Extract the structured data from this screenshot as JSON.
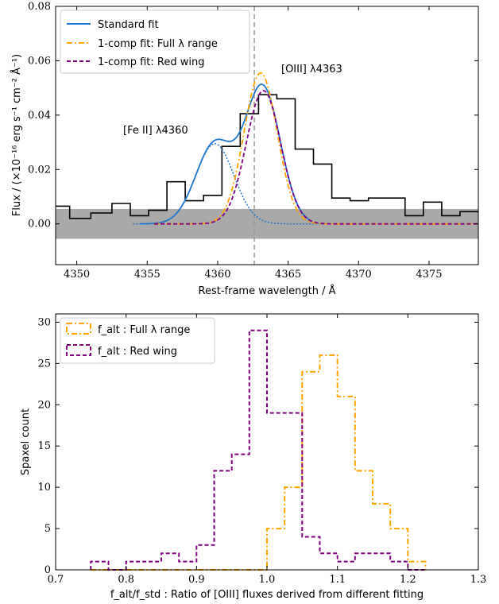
{
  "chart_data": [
    {
      "type": "line",
      "xlabel": "Rest-frame wavelength / Å",
      "ylabel": "Flux / (×10⁻¹⁶ erg s⁻¹ cm⁻² Å⁻¹)",
      "xlim": [
        4348.5,
        4378.5
      ],
      "ylim": [
        -0.015,
        0.08
      ],
      "xticks": [
        4350,
        4355,
        4360,
        4365,
        4370,
        4375
      ],
      "yticks": [
        0.0,
        0.02,
        0.04,
        0.06,
        0.08
      ],
      "ytick_labels": [
        "0.00",
        "0.02",
        "0.04",
        "0.06",
        "0.08"
      ],
      "legend_position": "top-left",
      "annotations": [
        {
          "text": "[Fe II] λ4360",
          "x": 4360.0,
          "y": 0.033
        },
        {
          "text": "[OIII] λ4363",
          "x": 4365.6,
          "y": 0.057
        }
      ],
      "vline_x": 4362.6,
      "error_band": {
        "lower": -0.0055,
        "upper": 0.0055
      },
      "observed_spectrum": {
        "name": "",
        "color": "#000000",
        "bin_edges": [
          4348.5,
          4349.5,
          4351.0,
          4352.5,
          4353.8,
          4355.1,
          4356.4,
          4357.7,
          4359.0,
          4360.3,
          4361.6,
          4362.9,
          4364.2,
          4365.5,
          4366.8,
          4368.1,
          4369.4,
          4370.7,
          4372.0,
          4373.3,
          4374.6,
          4375.9,
          4377.2,
          4378.5
        ],
        "values": [
          0.0065,
          0.002,
          0.004,
          0.0075,
          0.003,
          0.005,
          0.0155,
          0.0085,
          0.0105,
          0.0285,
          0.0405,
          0.0475,
          0.046,
          0.0275,
          0.022,
          0.0095,
          0.0085,
          0.0095,
          0.0095,
          0.003,
          0.008,
          0.003,
          0.0045
        ]
      },
      "series": [
        {
          "name": "Standard fit",
          "color": "#1f77d0",
          "style": "solid",
          "components": [
            {
              "amp": 0.0295,
              "center": 4359.8,
              "sigma": 1.35
            },
            {
              "amp": 0.05,
              "center": 4363.2,
              "sigma": 1.25
            }
          ]
        },
        {
          "name": "1-comp fit: Full λ range",
          "color": "#ffa500",
          "style": "dashdot",
          "components": [
            {
              "amp": 0.0555,
              "center": 4363.05,
              "sigma": 1.18
            }
          ]
        },
        {
          "name": "1-comp fit: Red wing",
          "color": "#800080",
          "style": "dashed",
          "components": [
            {
              "amp": 0.049,
              "center": 4363.25,
              "sigma": 1.22
            }
          ]
        }
      ],
      "component_curve": {
        "name": "",
        "color": "#1f77d0",
        "style": "dotted",
        "amp": 0.0295,
        "center": 4359.8,
        "sigma": 1.35
      }
    },
    {
      "type": "histogram",
      "xlabel": "f_alt/f_std : Ratio of [OIII] fluxes derived from different fitting",
      "ylabel": "Spaxel count",
      "xlim": [
        0.7,
        1.3
      ],
      "ylim": [
        0,
        31
      ],
      "xticks": [
        0.7,
        0.8,
        0.9,
        1.0,
        1.1,
        1.2,
        1.3
      ],
      "xtick_labels": [
        "0.7",
        "0.8",
        "0.9",
        "1.0",
        "1.1",
        "1.2",
        "1.3"
      ],
      "yticks": [
        0,
        5,
        10,
        15,
        20,
        25,
        30
      ],
      "legend_position": "top-left",
      "bin_edges": [
        0.75,
        0.775,
        0.8,
        0.825,
        0.85,
        0.875,
        0.9,
        0.925,
        0.95,
        0.975,
        1.0,
        1.025,
        1.05,
        1.075,
        1.1,
        1.125,
        1.15,
        1.175,
        1.2,
        1.225
      ],
      "series": [
        {
          "name": "f_alt : Full λ range",
          "color": "#ffa500",
          "style": "dashdot",
          "counts": [
            0,
            0,
            0,
            0,
            0,
            0,
            0,
            0,
            0,
            0,
            5,
            10,
            24,
            26,
            21,
            12,
            8,
            5,
            1
          ]
        },
        {
          "name": "f_alt : Red wing",
          "color": "#800080",
          "style": "dashed",
          "counts": [
            1,
            0,
            1,
            1,
            2,
            1,
            3,
            12,
            14,
            29,
            19,
            19,
            4,
            2,
            1,
            2,
            2,
            1,
            0
          ]
        }
      ]
    }
  ]
}
